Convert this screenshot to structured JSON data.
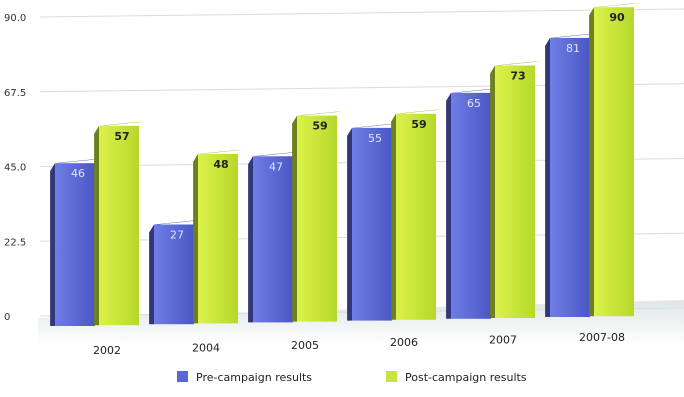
{
  "chart_data": {
    "type": "bar",
    "categories": [
      "2002",
      "2004",
      "2005",
      "2006",
      "2007",
      "2007-08"
    ],
    "series": [
      {
        "name": "Pre-campaign results",
        "values": [
          46,
          27,
          47,
          55,
          65,
          81
        ],
        "color": "#5b66d8"
      },
      {
        "name": "Post-campaign results",
        "values": [
          57,
          48,
          59,
          59,
          73,
          90
        ],
        "color": "#c8e63a"
      }
    ],
    "yticks": [
      "90.0",
      "67.5",
      "45.0",
      "22.5",
      "0"
    ],
    "ylim": [
      0,
      90
    ],
    "grid": true,
    "legend_position": "bottom"
  }
}
